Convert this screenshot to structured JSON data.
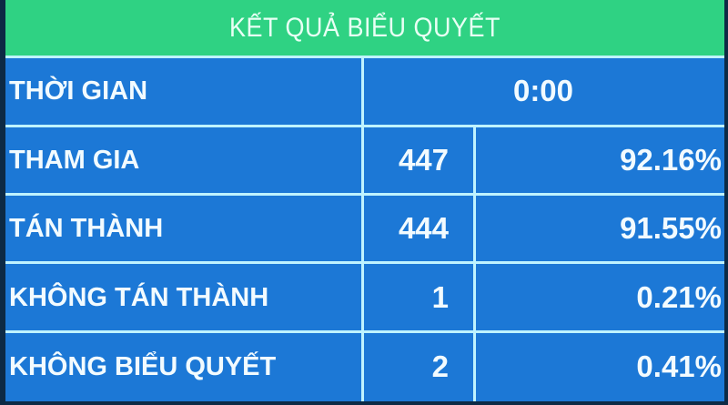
{
  "header": {
    "title": "KẾT QUẢ BIỂU QUYẾT"
  },
  "colors": {
    "header_bg": "#2fd283",
    "table_bg": "#1c78d6",
    "grid_lines": "#bff3ff",
    "text": "#f2fbff"
  },
  "time": {
    "label": "THỜI GIAN",
    "value": "0:00"
  },
  "rows": [
    {
      "label": "THAM GIA",
      "count": "447",
      "percent": "92.16%"
    },
    {
      "label": "TÁN THÀNH",
      "count": "444",
      "percent": "91.55%"
    },
    {
      "label": "KHÔNG TÁN THÀNH",
      "count": "1",
      "percent": "0.21%"
    },
    {
      "label": "KHÔNG BIỂU QUYẾT",
      "count": "2",
      "percent": "0.41%"
    }
  ]
}
